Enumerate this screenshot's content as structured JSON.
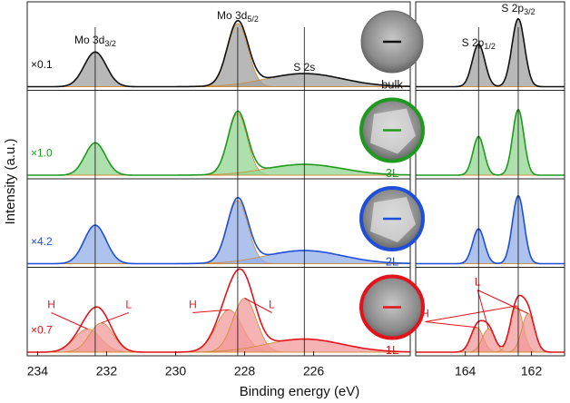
{
  "y_label": "Intensity (a.u.)",
  "x_label": "Binding energy (eV)",
  "samples": [
    "bulk",
    "3L",
    "2L",
    "1L"
  ],
  "chart_data": [
    {
      "type": "spectra",
      "xlim": [
        234.3,
        223.2
      ],
      "xticks": [
        234,
        232,
        230,
        228,
        226
      ],
      "ylim": [
        0,
        1
      ],
      "reference_lines": [
        232.33,
        228.2,
        226.27
      ],
      "peak_labels": [
        {
          "main": "Mo 3d",
          "sub": "3/2"
        },
        {
          "main": "Mo 3d",
          "sub": "5/2"
        },
        {
          "main": "S 2s"
        }
      ],
      "rows": [
        {
          "scale": "×0.1",
          "color": "#111111",
          "fill": "#a0a0a0",
          "centers": [
            232.33,
            228.2,
            226.27
          ],
          "heights": [
            0.45,
            0.82,
            0.17
          ],
          "widths": [
            0.75,
            0.7,
            2.6
          ]
        },
        {
          "scale": "×1.0",
          "color": "#1e9a1e",
          "fill": "#93d693",
          "centers": [
            232.33,
            228.2,
            226.27
          ],
          "heights": [
            0.42,
            0.8,
            0.14
          ],
          "widths": [
            0.7,
            0.65,
            2.6
          ]
        },
        {
          "scale": "×4.2",
          "color": "#1f4fd8",
          "fill": "#93aee8",
          "centers": [
            232.33,
            228.2,
            226.27
          ],
          "heights": [
            0.5,
            0.82,
            0.17
          ],
          "widths": [
            0.75,
            0.7,
            2.6
          ]
        },
        {
          "scale": "×0.7",
          "color": "#e3121b",
          "fill": "#f29a9a",
          "centers": [
            232.55,
            232.15,
            228.45,
            228.0,
            226.27
          ],
          "heights": [
            0.3,
            0.38,
            0.55,
            0.7,
            0.17
          ],
          "widths": [
            0.9,
            0.8,
            0.9,
            0.8,
            2.6
          ],
          "annotations": [
            {
              "text": "H",
              "peaks": [
                0
              ]
            },
            {
              "text": "L",
              "peaks": [
                1
              ]
            },
            {
              "text": "H",
              "peaks": [
                2
              ]
            },
            {
              "text": "L",
              "peaks": [
                3
              ]
            }
          ]
        }
      ]
    },
    {
      "type": "spectra",
      "xlim": [
        165.5,
        161.0
      ],
      "xticks": [
        164,
        162
      ],
      "ylim": [
        0,
        1
      ],
      "reference_lines": [
        163.6,
        162.4
      ],
      "peak_labels": [
        {
          "main": "S 2p",
          "sub": "1/2"
        },
        {
          "main": "S 2p",
          "sub": "3/2"
        }
      ],
      "rows": [
        {
          "color": "#111111",
          "fill": "#a0a0a0",
          "centers": [
            163.6,
            162.4
          ],
          "heights": [
            0.55,
            0.88
          ],
          "widths": [
            0.45,
            0.45
          ]
        },
        {
          "color": "#1e9a1e",
          "fill": "#93d693",
          "centers": [
            163.6,
            162.4
          ],
          "heights": [
            0.5,
            0.85
          ],
          "widths": [
            0.4,
            0.4
          ]
        },
        {
          "color": "#1f4fd8",
          "fill": "#93aee8",
          "centers": [
            163.6,
            162.4
          ],
          "heights": [
            0.45,
            0.88
          ],
          "widths": [
            0.42,
            0.42
          ]
        },
        {
          "color": "#e3121b",
          "fill": "#f29a9a",
          "centers": [
            163.65,
            163.3,
            162.45,
            162.1
          ],
          "heights": [
            0.32,
            0.3,
            0.6,
            0.5
          ],
          "widths": [
            0.45,
            0.45,
            0.45,
            0.45
          ],
          "annotations": [
            {
              "text": "H",
              "peaks": [
                0,
                2
              ]
            },
            {
              "text": "L",
              "peaks": [
                1,
                3
              ]
            }
          ]
        }
      ]
    }
  ]
}
